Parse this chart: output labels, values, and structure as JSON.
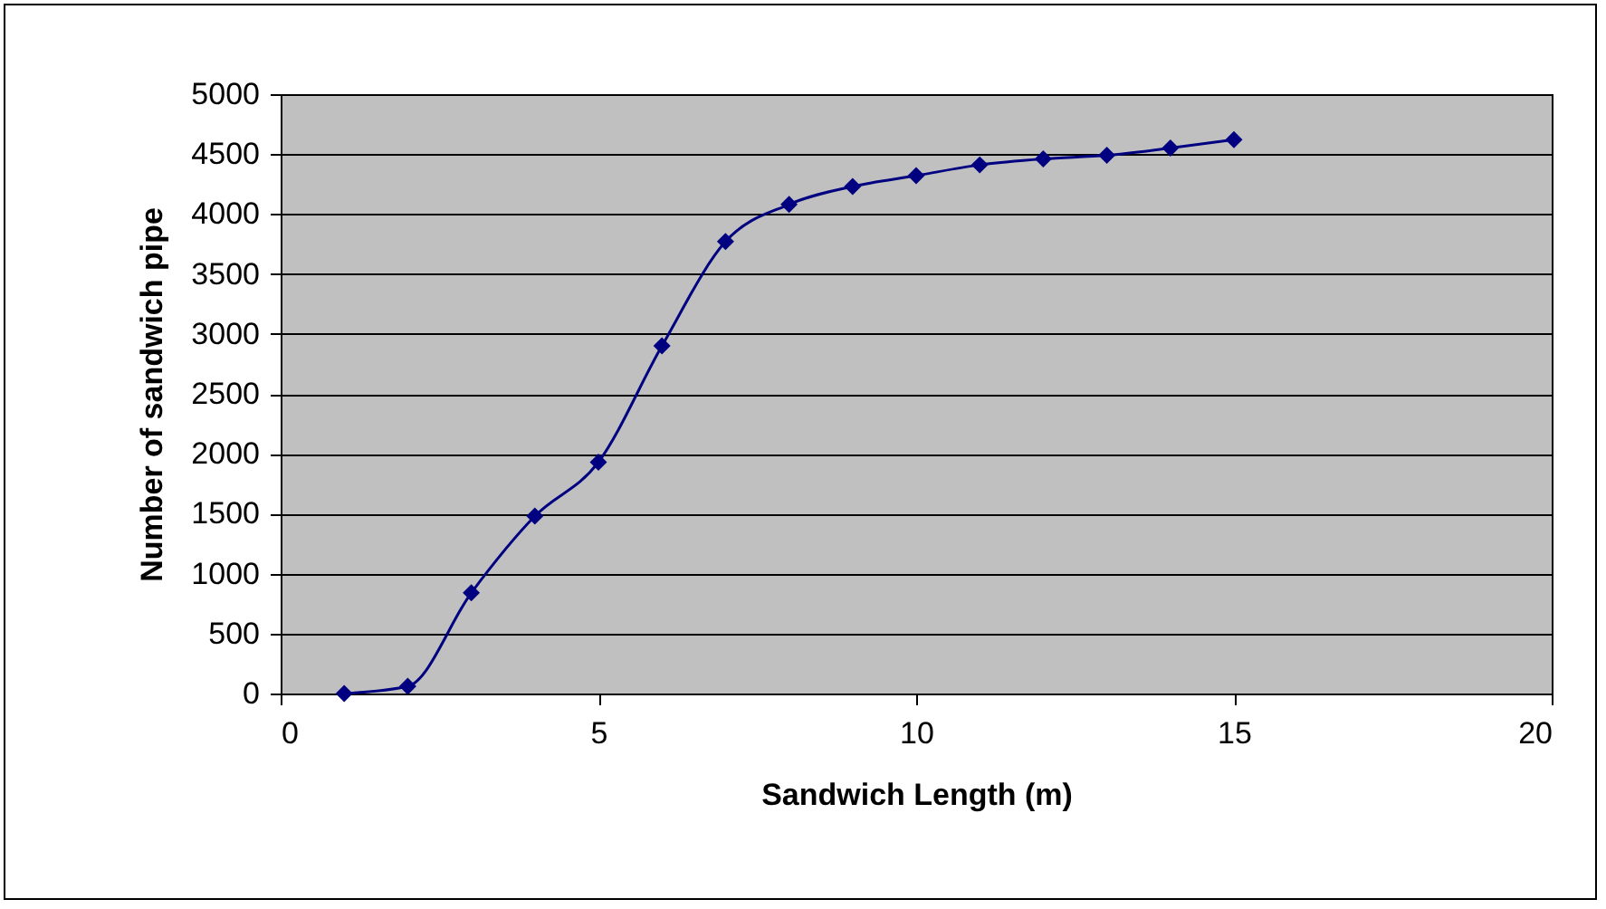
{
  "chart_data": {
    "type": "line",
    "xlabel": "Sandwich Length (m)",
    "ylabel": "Number of sandwich pipe",
    "x": [
      1,
      2,
      3,
      4,
      5,
      6,
      7,
      8,
      9,
      10,
      11,
      12,
      13,
      14,
      15
    ],
    "series": [
      {
        "color": "#000080",
        "values": [
          0,
          60,
          840,
          1480,
          1930,
          2900,
          3770,
          4080,
          4230,
          4320,
          4410,
          4460,
          4490,
          4550,
          4620
        ]
      }
    ],
    "xlim": [
      0,
      20
    ],
    "xticks": [
      0,
      5,
      10,
      15,
      20
    ],
    "ylim": [
      0,
      5000
    ],
    "yticks": [
      0,
      500,
      1000,
      1500,
      2000,
      2500,
      3000,
      3500,
      4000,
      4500,
      5000
    ],
    "grid": "y",
    "marker": "diamond",
    "line_style": "solid"
  }
}
